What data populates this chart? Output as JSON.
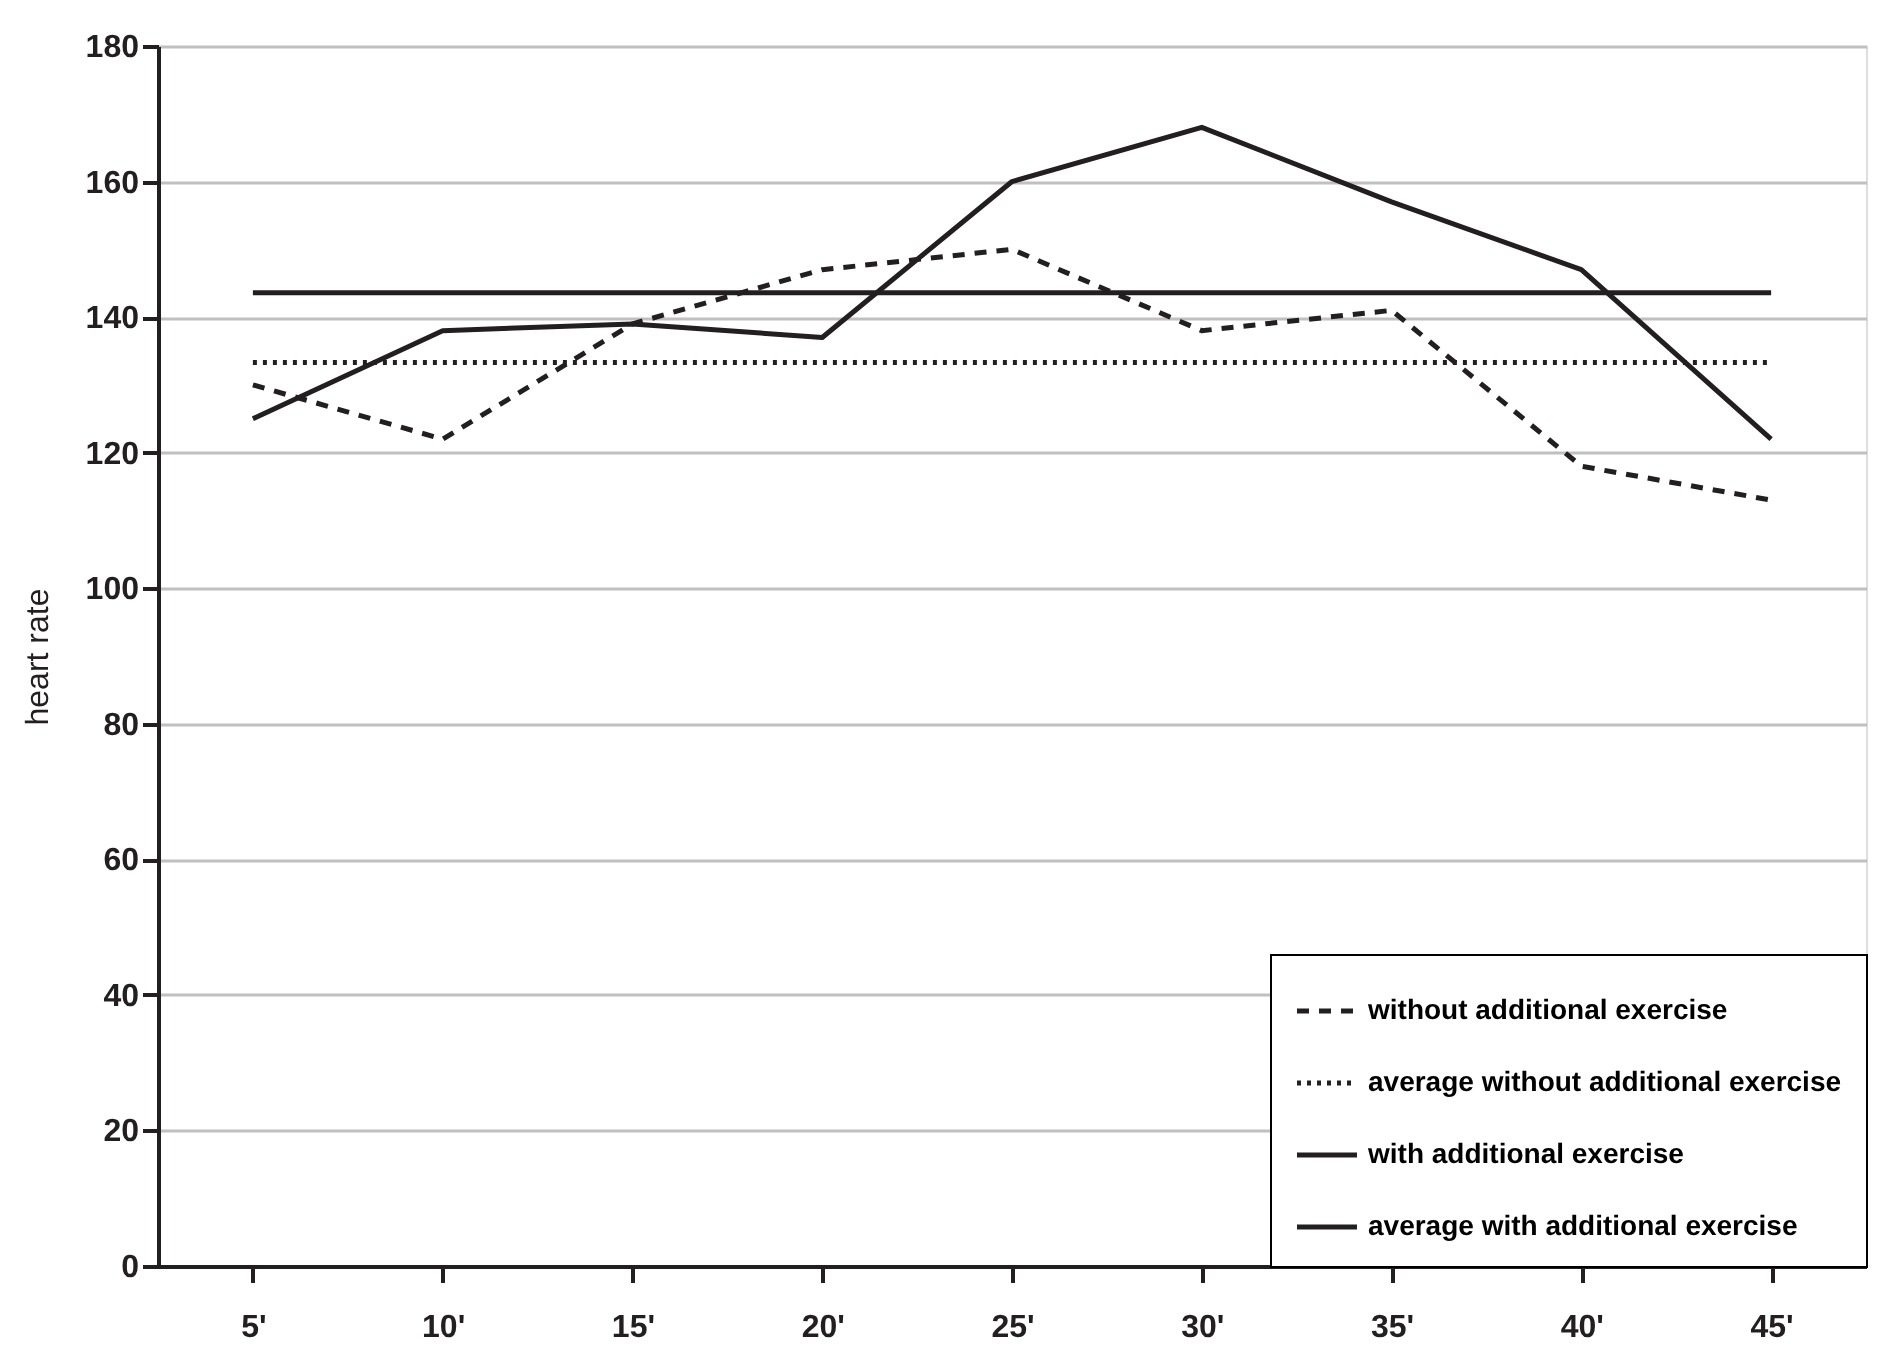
{
  "chart_data": {
    "type": "line",
    "ylabel": "heart rate",
    "categories": [
      "5'",
      "10'",
      "15'",
      "20'",
      "25'",
      "30'",
      "35'",
      "40'",
      "45'"
    ],
    "series": [
      {
        "name": "without additional exercise",
        "color": "#231f20",
        "line_style": "dashed",
        "values": [
          130,
          122,
          139,
          147,
          150,
          138,
          141,
          118,
          113
        ]
      },
      {
        "name": "average without additional exercise",
        "color": "#231f20",
        "line_style": "dotted",
        "values": [
          133.3,
          133.3,
          133.3,
          133.3,
          133.3,
          133.3,
          133.3,
          133.3,
          133.3
        ]
      },
      {
        "name": "with additional exercise",
        "color": "#231f20",
        "line_style": "solid",
        "values": [
          125,
          138,
          139,
          137,
          160,
          168,
          157,
          147,
          122
        ]
      },
      {
        "name": "average with additional exercise",
        "color": "#231f20",
        "line_style": "solid",
        "values": [
          143.6,
          143.6,
          143.6,
          143.6,
          143.6,
          143.6,
          143.6,
          143.6,
          143.6
        ]
      }
    ],
    "ylim": [
      0,
      180
    ],
    "yticks": [
      0,
      20,
      40,
      60,
      80,
      100,
      120,
      140,
      160,
      180
    ],
    "grid": "y",
    "legend": "bottom right",
    "marker": "none"
  }
}
